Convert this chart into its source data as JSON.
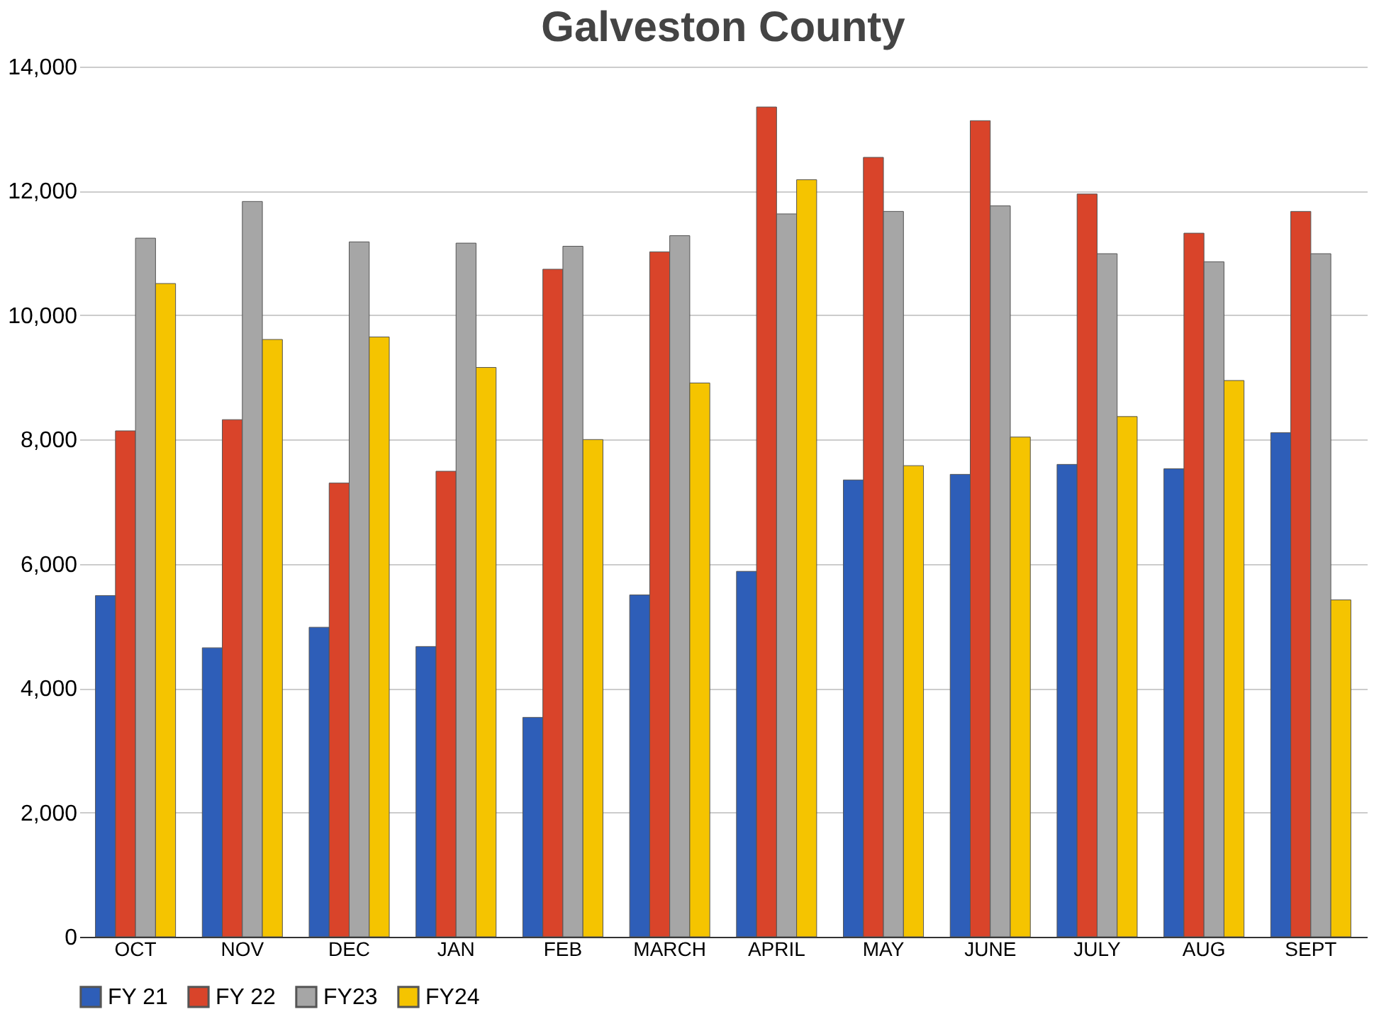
{
  "chart_data": {
    "type": "bar",
    "title": "Galveston County",
    "categories": [
      "OCT",
      "NOV",
      "DEC",
      "JAN",
      "FEB",
      "MARCH",
      "APRIL",
      "MAY",
      "JUNE",
      "JULY",
      "AUG",
      "SEPT"
    ],
    "series": [
      {
        "name": "FY 21",
        "color": "#2e5eb8",
        "values": [
          5490,
          4650,
          4980,
          4670,
          3530,
          5500,
          5880,
          7350,
          7440,
          7600,
          7530,
          8110
        ]
      },
      {
        "name": "FY 22",
        "color": "#d9442a",
        "values": [
          8140,
          8320,
          7300,
          7490,
          10740,
          11020,
          13350,
          12540,
          13130,
          11950,
          11320,
          11670
        ]
      },
      {
        "name": "FY23",
        "color": "#a6a6a6",
        "values": [
          11240,
          11830,
          11180,
          11160,
          11110,
          11280,
          11630,
          11670,
          11760,
          10990,
          10860,
          10990
        ]
      },
      {
        "name": "FY24",
        "color": "#f5c400",
        "values": [
          10510,
          9610,
          9650,
          9160,
          8000,
          8910,
          12180,
          7580,
          8040,
          8370,
          8950,
          5420
        ]
      }
    ],
    "ylim": [
      0,
      14000
    ],
    "yticks": [
      0,
      {
        "value": 2000,
        "label": "2,000"
      },
      {
        "value": 4000,
        "label": "4,000"
      },
      {
        "value": 6000,
        "label": "6,000"
      },
      {
        "value": 8000,
        "label": "8,000"
      },
      {
        "value": 10000,
        "label": "10,000"
      },
      {
        "value": 12000,
        "label": "12,000"
      },
      {
        "value": 14000,
        "label": "14,000"
      }
    ],
    "grid": "y",
    "legend": "bottom"
  }
}
